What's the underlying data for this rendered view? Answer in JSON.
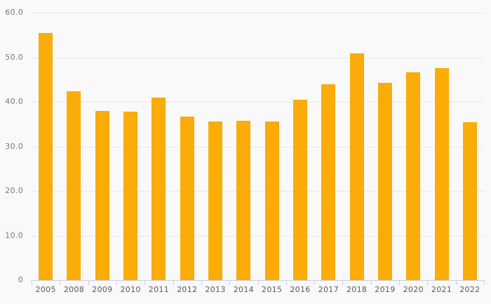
{
  "chart_data": {
    "type": "bar",
    "categories": [
      "2005",
      "2008",
      "2009",
      "2010",
      "2011",
      "2012",
      "2013",
      "2014",
      "2015",
      "2016",
      "2017",
      "2018",
      "2019",
      "2020",
      "2021",
      "2022"
    ],
    "values": [
      55.5,
      42.3,
      38.0,
      37.8,
      40.9,
      36.7,
      35.6,
      35.8,
      35.6,
      40.4,
      44.0,
      50.9,
      44.2,
      46.6,
      47.5,
      35.4
    ],
    "title": "",
    "xlabel": "",
    "ylabel": "",
    "ylim": [
      0,
      60
    ],
    "yticks": [
      0,
      10,
      20,
      30,
      40,
      50,
      60
    ],
    "ytick_labels": [
      "0",
      "10.0",
      "20.0",
      "30.0",
      "40.0",
      "50.0",
      "60.0"
    ],
    "grid": true,
    "legend": false,
    "colors": {
      "bar": "#faac08",
      "background": "#f9f9f9",
      "gridline": "#e8e8e8",
      "axis_line": "#c9d1e4",
      "x_label_text": "#5a5b5e",
      "y_label_text": "#7b7c7f"
    }
  }
}
